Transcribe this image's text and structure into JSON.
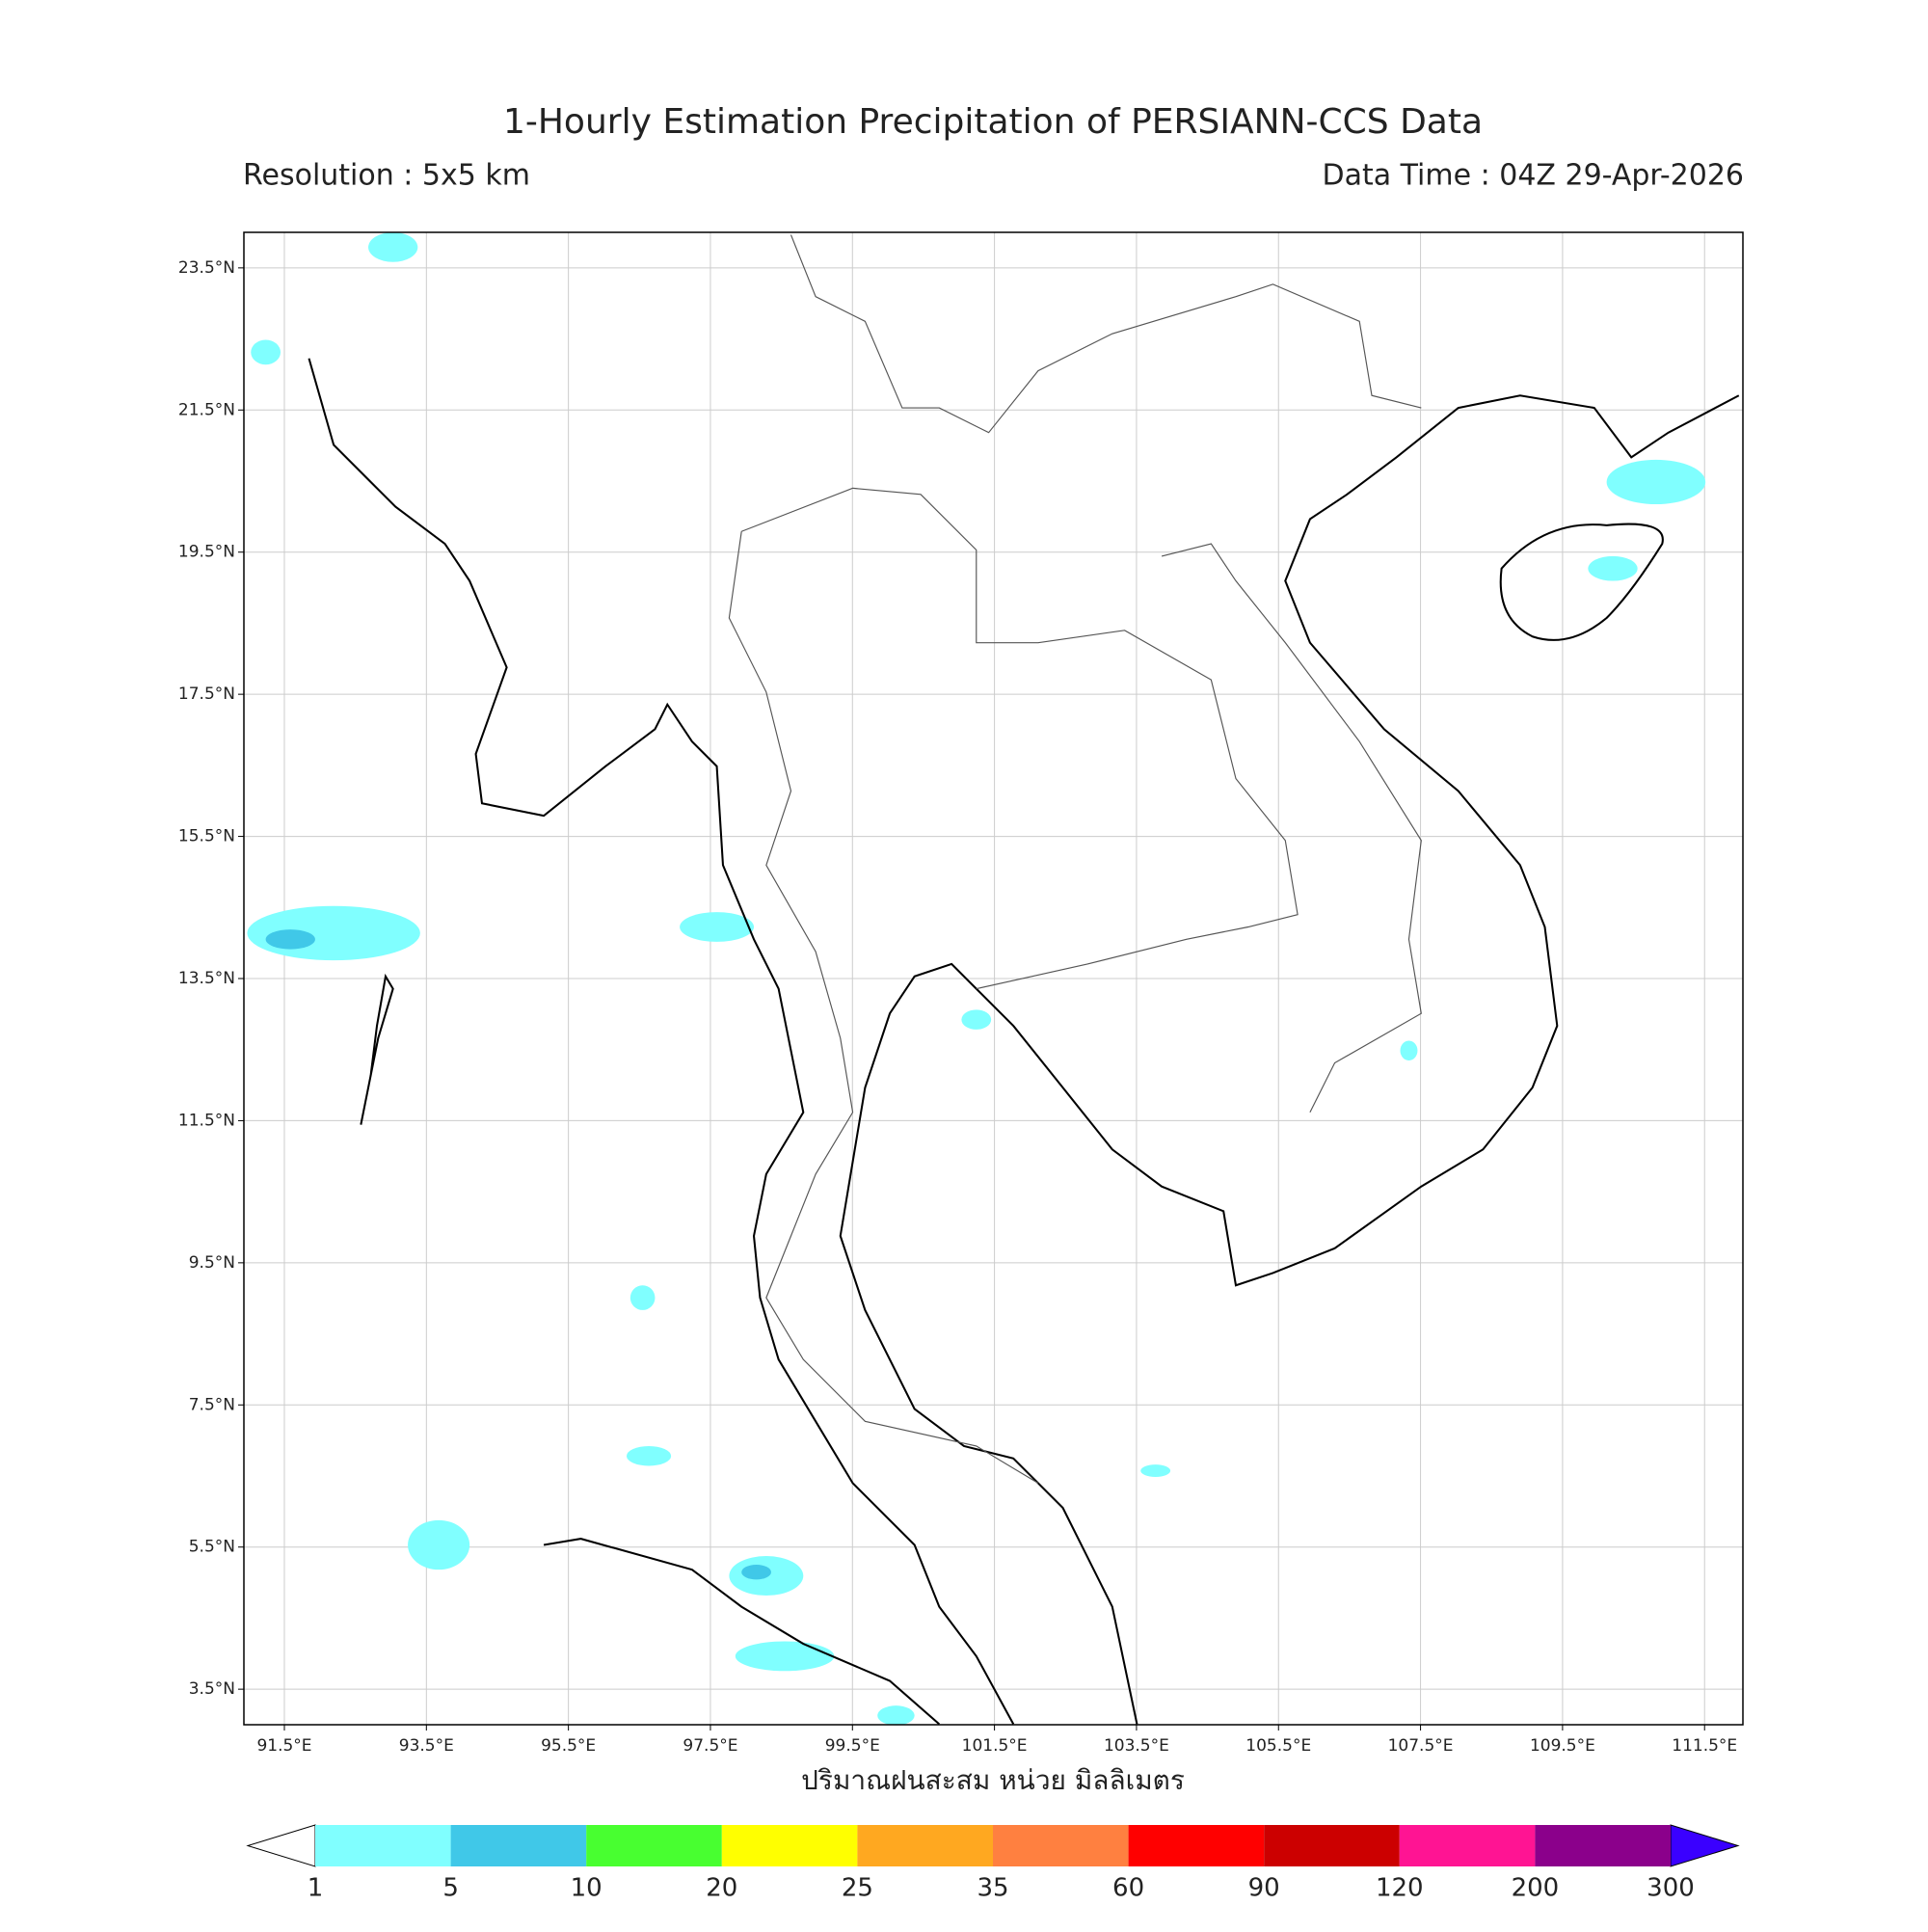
{
  "header": {
    "title": "1-Hourly Estimation Precipitation of PERSIANN-CCS Data",
    "resolution": "Resolution : 5x5 km",
    "data_time": "Data Time : 04Z 29-Apr-2026"
  },
  "map": {
    "xlim": [
      90.93,
      112.04
    ],
    "ylim": [
      3.0,
      24.0
    ],
    "grid": true,
    "xticks": [
      {
        "value": 91.5,
        "label": "91.5°E"
      },
      {
        "value": 93.5,
        "label": "93.5°E"
      },
      {
        "value": 95.5,
        "label": "95.5°E"
      },
      {
        "value": 97.5,
        "label": "97.5°E"
      },
      {
        "value": 99.5,
        "label": "99.5°E"
      },
      {
        "value": 101.5,
        "label": "101.5°E"
      },
      {
        "value": 103.5,
        "label": "103.5°E"
      },
      {
        "value": 105.5,
        "label": "105.5°E"
      },
      {
        "value": 107.5,
        "label": "107.5°E"
      },
      {
        "value": 109.5,
        "label": "109.5°E"
      },
      {
        "value": 111.5,
        "label": "111.5°E"
      }
    ],
    "yticks": [
      {
        "value": 3.5,
        "label": "3.5°N"
      },
      {
        "value": 5.5,
        "label": "5.5°N"
      },
      {
        "value": 7.5,
        "label": "7.5°N"
      },
      {
        "value": 9.5,
        "label": "9.5°N"
      },
      {
        "value": 11.5,
        "label": "11.5°N"
      },
      {
        "value": 13.5,
        "label": "13.5°N"
      },
      {
        "value": 15.5,
        "label": "15.5°N"
      },
      {
        "value": 17.5,
        "label": "17.5°N"
      },
      {
        "value": 19.5,
        "label": "19.5°N"
      },
      {
        "value": 21.5,
        "label": "21.5°N"
      },
      {
        "value": 23.5,
        "label": "23.5°N"
      }
    ],
    "xlabel": "ปริมาณฝนสะสม หน่วย มิลลิเมตร"
  },
  "colorbar": {
    "levels": [
      1,
      5,
      10,
      20,
      25,
      35,
      60,
      90,
      120,
      200,
      300
    ],
    "colors": [
      "#80ffff",
      "#40c8e8",
      "#48ff30",
      "#ffff00",
      "#ffa820",
      "#ff8040",
      "#ff0000",
      "#cc0000",
      "#ff1493",
      "#8b008b"
    ],
    "under_color": "#ffffff",
    "over_color": "#3a00ff"
  }
}
